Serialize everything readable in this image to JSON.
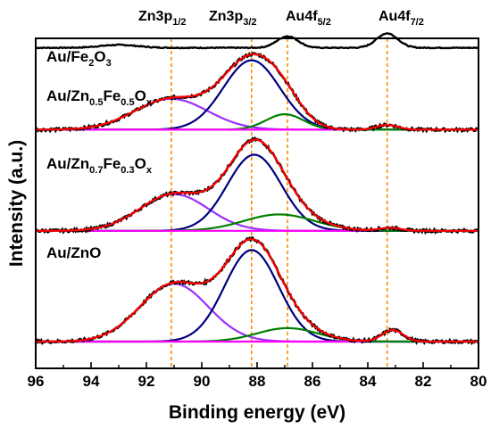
{
  "chart_data": {
    "type": "line",
    "xlabel": "Binding energy (eV)",
    "ylabel": "Intensity (a.u.)",
    "xlim": [
      96,
      80
    ],
    "x_reversed": true,
    "x_ticks": [
      "96",
      "94",
      "92",
      "90",
      "88",
      "86",
      "84",
      "82",
      "80"
    ],
    "x_tick_values": [
      96,
      94,
      92,
      90,
      88,
      86,
      84,
      82,
      80
    ],
    "y_ticks": false,
    "grid": false,
    "peak_markers": [
      {
        "label_main": "Zn3p",
        "label_sub": "1/2",
        "x": 91.1
      },
      {
        "label_main": "Zn3p",
        "label_sub": "3/2",
        "x": 88.2
      },
      {
        "label_main": "Au4f",
        "label_sub": "5/2",
        "x": 86.9
      },
      {
        "label_main": "Au4f",
        "label_sub": "7/2",
        "x": 83.3
      }
    ],
    "samples": [
      {
        "label_parts": [
          {
            "t": "Au/Fe",
            "sub": false
          },
          {
            "t": "2",
            "sub": true
          },
          {
            "t": "O",
            "sub": false
          },
          {
            "t": "3",
            "sub": true
          }
        ],
        "offset": 3.05,
        "baseline": 0.0,
        "background_slope": 0.0,
        "components": [],
        "measured_peaks": [
          {
            "center": 93.0,
            "fwhm": 1.6,
            "height": 0.03
          },
          {
            "center": 86.9,
            "fwhm": 0.9,
            "height": 0.12
          },
          {
            "center": 83.3,
            "fwhm": 0.9,
            "height": 0.15
          }
        ]
      },
      {
        "label_parts": [
          {
            "t": "Au/Zn",
            "sub": false
          },
          {
            "t": "0.5",
            "sub": true
          },
          {
            "t": "Fe",
            "sub": false
          },
          {
            "t": "0.5",
            "sub": true
          },
          {
            "t": "O",
            "sub": false
          },
          {
            "t": "x",
            "sub": true
          }
        ],
        "offset": 2.2,
        "baseline": 0.0,
        "background_slope": 0.0,
        "components": [
          {
            "name": "Zn3p1/2",
            "center": 91.1,
            "fwhm": 3.1,
            "height": 0.32,
            "color": "#9b30ff"
          },
          {
            "name": "Zn3p3/2",
            "center": 88.2,
            "fwhm": 2.4,
            "height": 0.72,
            "color": "#000080"
          },
          {
            "name": "Au4f5/2",
            "center": 87.0,
            "fwhm": 1.6,
            "height": 0.16,
            "color": "#008000"
          },
          {
            "name": "Au4f7/2",
            "center": 83.3,
            "fwhm": 0.9,
            "height": 0.05,
            "color": "#ff00ff"
          }
        ]
      },
      {
        "label_parts": [
          {
            "t": "Au/Zn",
            "sub": false
          },
          {
            "t": "0.7",
            "sub": true
          },
          {
            "t": "Fe",
            "sub": false
          },
          {
            "t": "0.3",
            "sub": true
          },
          {
            "t": "O",
            "sub": false
          },
          {
            "t": "x",
            "sub": true
          }
        ],
        "offset": 1.15,
        "baseline": 0.0,
        "background_slope": 0.0,
        "components": [
          {
            "name": "Zn3p1/2",
            "center": 91.0,
            "fwhm": 2.9,
            "height": 0.38,
            "color": "#9b30ff"
          },
          {
            "name": "Zn3p3/2",
            "center": 88.1,
            "fwhm": 2.3,
            "height": 0.79,
            "color": "#000080"
          },
          {
            "name": "Au4f5/2",
            "center": 87.2,
            "fwhm": 3.0,
            "height": 0.17,
            "color": "#008000"
          },
          {
            "name": "Au4f7/2",
            "center": 83.2,
            "fwhm": 0.9,
            "height": 0.03,
            "color": "#ff00ff"
          }
        ]
      },
      {
        "label_parts": [
          {
            "t": "Au/ZnO",
            "sub": false
          }
        ],
        "offset": 0.0,
        "baseline": 0.0,
        "background_slope": 0.0,
        "components": [
          {
            "name": "Zn3p1/2",
            "center": 91.0,
            "fwhm": 2.9,
            "height": 0.6,
            "color": "#9b30ff"
          },
          {
            "name": "Zn3p3/2",
            "center": 88.2,
            "fwhm": 2.3,
            "height": 0.95,
            "color": "#000080"
          },
          {
            "name": "Au4f5/2",
            "center": 86.9,
            "fwhm": 2.6,
            "height": 0.14,
            "color": "#008000"
          },
          {
            "name": "Au4f7/2",
            "center": 83.1,
            "fwhm": 0.9,
            "height": 0.12,
            "color": "#ff00ff"
          }
        ]
      }
    ],
    "colors": {
      "raw": "#000000",
      "fit": "#ff0000",
      "background": "#00c8c8",
      "marker": "#ff8c00",
      "reference": "#000000"
    }
  }
}
